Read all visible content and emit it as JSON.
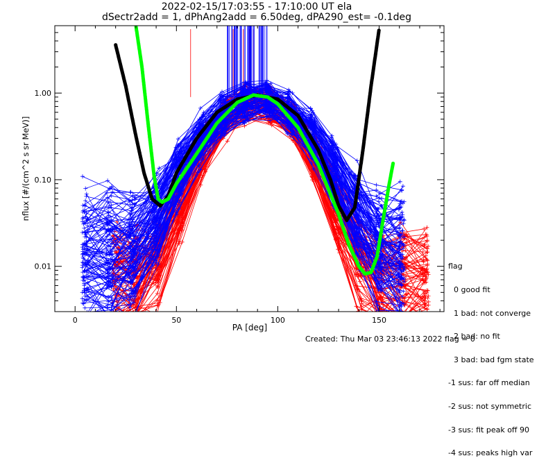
{
  "chart_data": {
    "type": "scatter",
    "title": "2022-02-15/17:03:55 - 17:10:00 UT ela",
    "subtitle": "dSectr2add = 1, dPhAng2add = 6.50deg, dPA290_est=  -0.1deg",
    "xlabel": "PA [deg]",
    "ylabel": "nflux [#/(cm^2 s sr MeV)]",
    "xlim": [
      -10,
      182
    ],
    "ylim": [
      0.003,
      6
    ],
    "yscale": "log",
    "x_ticks": [
      0,
      50,
      100,
      150
    ],
    "x_tick_labels": [
      "0",
      "50",
      "100",
      "150"
    ],
    "y_ticks": [
      0.01,
      0.1,
      1.0
    ],
    "y_tick_labels": [
      "0.01",
      "0.10",
      "1.00"
    ],
    "grid": false,
    "colors": {
      "red_traces": "#ff0000",
      "blue_traces": "#0000ff",
      "green_fit": "#00ff00",
      "black_fit": "#000000"
    },
    "series": [
      {
        "color": "#000000",
        "style": "dots",
        "x": [
          20,
          25,
          30,
          34,
          38,
          42,
          46,
          50,
          60,
          70,
          80,
          90,
          100,
          110,
          120,
          126,
          130,
          134,
          138,
          142,
          146,
          150
        ],
        "y": [
          3.6,
          1.2,
          0.32,
          0.12,
          0.06,
          0.05,
          0.065,
          0.12,
          0.3,
          0.6,
          0.85,
          0.95,
          0.85,
          0.55,
          0.22,
          0.1,
          0.05,
          0.034,
          0.048,
          0.22,
          1.2,
          5.5
        ]
      },
      {
        "color": "#00ff00",
        "style": "dots",
        "x": [
          30,
          33,
          36,
          39,
          41,
          43,
          46,
          50,
          60,
          70,
          80,
          88,
          95,
          100,
          110,
          120,
          130,
          135,
          140,
          143,
          146,
          149,
          152,
          155,
          157
        ],
        "y": [
          6.0,
          2.0,
          0.45,
          0.11,
          0.06,
          0.055,
          0.06,
          0.09,
          0.2,
          0.45,
          0.78,
          0.95,
          0.9,
          0.75,
          0.4,
          0.15,
          0.04,
          0.018,
          0.01,
          0.0082,
          0.0085,
          0.013,
          0.035,
          0.09,
          0.16
        ]
      },
      {
        "color": "#ff0000",
        "style": "lines"
      },
      {
        "color": "#0000ff",
        "style": "lines"
      }
    ]
  },
  "legend": {
    "title": "flag",
    "items": [
      "0 good fit",
      "1 bad: not converge",
      "2 bad: no fit",
      "3 bad: bad fgm state",
      "-1 sus: far off median",
      "-2 sus: not symmetric",
      "-3 sus: fit peak off 90",
      "-4 sus: peaks high var"
    ]
  },
  "footer": "Created: Thu Mar 03 23:46:13 2022   flag = 0"
}
